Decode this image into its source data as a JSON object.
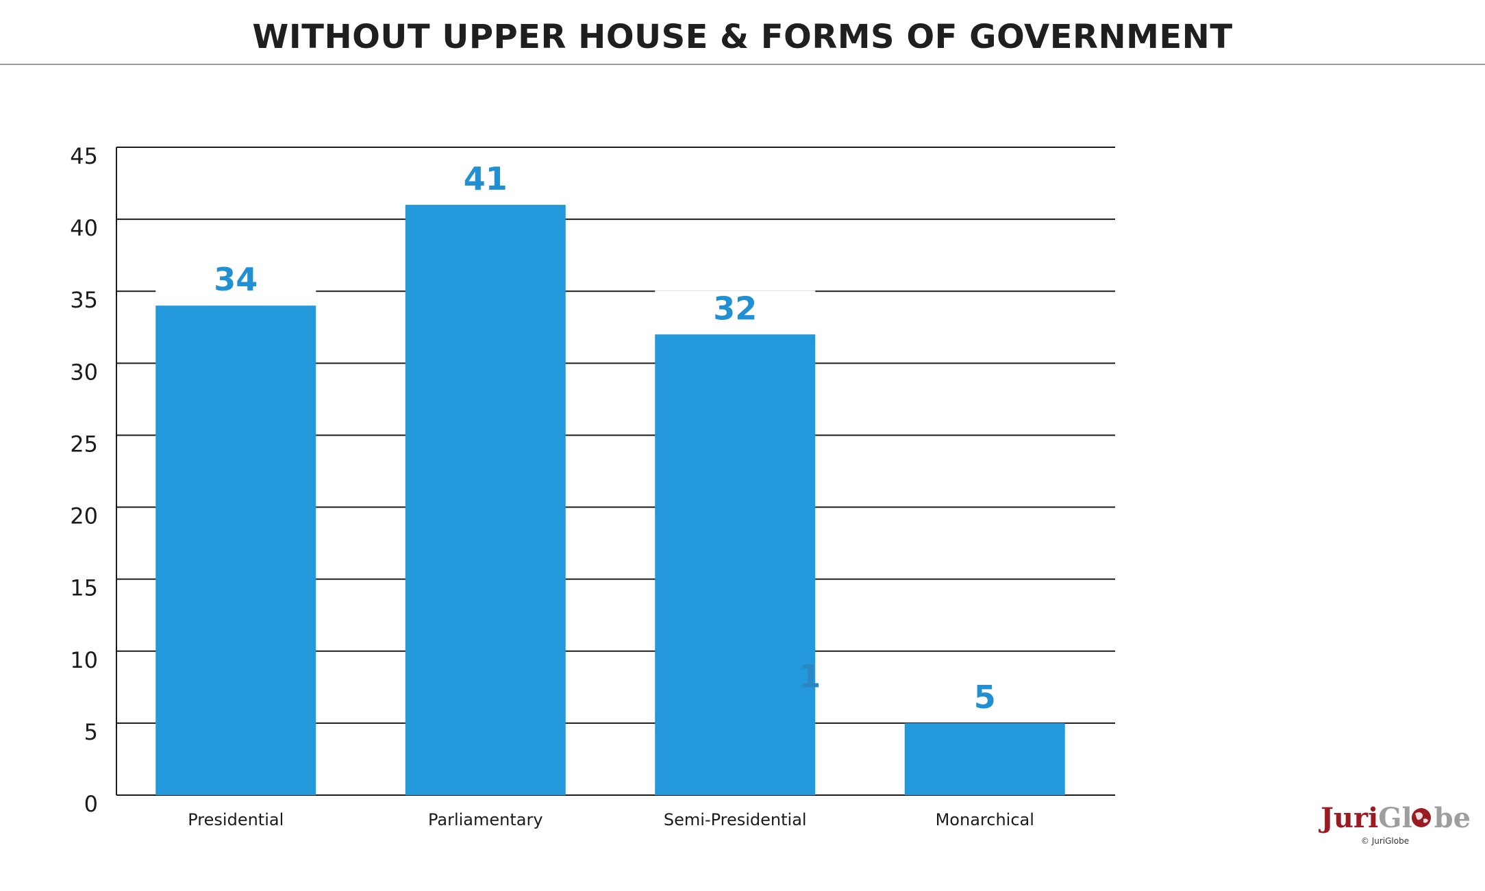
{
  "colors": {
    "bar": "#2399DB",
    "label": "#2190D2",
    "grid": "#1a1a1a",
    "logo_red": "#9B1B22",
    "logo_gray": "#9E9E9E"
  },
  "chart_data": {
    "type": "bar",
    "title": "WITHOUT UPPER HOUSE & FORMS OF GOVERNMENT",
    "xlabel": "",
    "ylabel": "",
    "categories": [
      "Presidential",
      "Parliamentary",
      "Semi-Presidential",
      "Monarchical"
    ],
    "values": [
      34,
      41,
      32,
      5
    ],
    "data_labels": [
      "34",
      "41",
      "32",
      "5"
    ],
    "ylim": [
      0,
      45
    ],
    "yticks": [
      0,
      5,
      10,
      15,
      20,
      25,
      30,
      35,
      40,
      45
    ],
    "grid": true,
    "legend": "none",
    "stray_label": "1"
  },
  "logo": {
    "juri": "Juri",
    "globe_left": "Gl",
    "globe_right": "be",
    "copyright": "© JuriGlobe"
  }
}
